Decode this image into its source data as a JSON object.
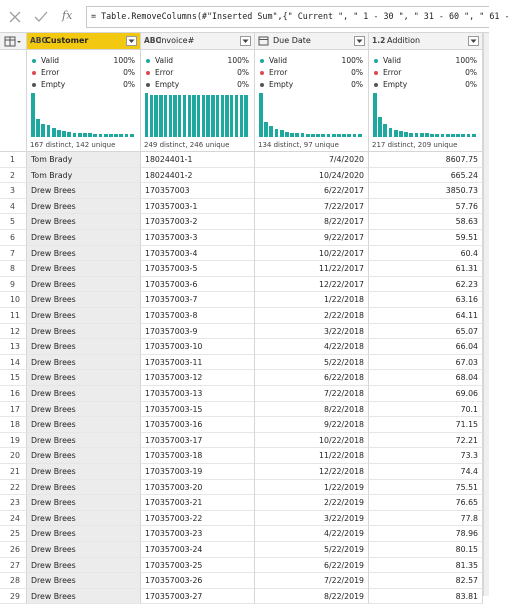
{
  "formula_bar": {
    "fx": "fx",
    "formula": "= Table.RemoveColumns(#\"Inserted Sum\",{\" Current \", \" 1 - 30 \", \" 31 - 60 \", \" 61 -"
  },
  "table": {
    "quality_labels": [
      "Valid",
      "Error",
      "Empty"
    ],
    "columns": [
      {
        "name": "Customer",
        "type_icon": "ABC",
        "quality": [
          "100%",
          "0%",
          "0%"
        ],
        "distribution": "167 distinct, 142 unique",
        "histogram": [
          100,
          40,
          30,
          27,
          20,
          17,
          14,
          12,
          10,
          9,
          8,
          8,
          7,
          7,
          6,
          6,
          6,
          6,
          6,
          6
        ]
      },
      {
        "name": "Invoice#",
        "type_icon": "ABC",
        "quality": [
          "100%",
          "0%",
          "0%"
        ],
        "distribution": "249 distinct, 246 unique",
        "histogram": [
          100,
          95,
          95,
          95,
          95,
          95,
          95,
          95,
          95,
          95,
          95,
          95,
          95,
          95,
          95,
          95,
          95,
          95,
          95,
          95,
          95,
          95
        ]
      },
      {
        "name": "Due Date",
        "quality": [
          "100%",
          "0%",
          "0%"
        ],
        "distribution": "134 distinct, 97 unique",
        "histogram": [
          100,
          35,
          25,
          18,
          15,
          12,
          10,
          9,
          8,
          7,
          7,
          6,
          6,
          6,
          6,
          6,
          6,
          6,
          6,
          6
        ]
      },
      {
        "name": "Addition",
        "type_icon": "1.2",
        "quality": [
          "100%",
          "0%",
          "0%"
        ],
        "distribution": "217 distinct, 209 unique",
        "histogram": [
          100,
          45,
          30,
          20,
          17,
          14,
          12,
          10,
          9,
          8,
          8,
          7,
          7,
          7,
          6,
          6,
          6,
          6,
          6,
          6
        ]
      }
    ],
    "rows": [
      [
        1,
        "Tom Brady",
        "18024401-1",
        "7/4/2020",
        "8607.75"
      ],
      [
        2,
        "Tom Brady",
        "18024401-2",
        "10/24/2020",
        "665.24"
      ],
      [
        3,
        "Drew Brees",
        "170357003",
        "6/22/2017",
        "3850.73"
      ],
      [
        4,
        "Drew Brees",
        "170357003-1",
        "7/22/2017",
        "57.76"
      ],
      [
        5,
        "Drew Brees",
        "170357003-2",
        "8/22/2017",
        "58.63"
      ],
      [
        6,
        "Drew Brees",
        "170357003-3",
        "9/22/2017",
        "59.51"
      ],
      [
        7,
        "Drew Brees",
        "170357003-4",
        "10/22/2017",
        "60.4"
      ],
      [
        8,
        "Drew Brees",
        "170357003-5",
        "11/22/2017",
        "61.31"
      ],
      [
        9,
        "Drew Brees",
        "170357003-6",
        "12/22/2017",
        "62.23"
      ],
      [
        10,
        "Drew Brees",
        "170357003-7",
        "1/22/2018",
        "63.16"
      ],
      [
        11,
        "Drew Brees",
        "170357003-8",
        "2/22/2018",
        "64.11"
      ],
      [
        12,
        "Drew Brees",
        "170357003-9",
        "3/22/2018",
        "65.07"
      ],
      [
        13,
        "Drew Brees",
        "170357003-10",
        "4/22/2018",
        "66.04"
      ],
      [
        14,
        "Drew Brees",
        "170357003-11",
        "5/22/2018",
        "67.03"
      ],
      [
        15,
        "Drew Brees",
        "170357003-12",
        "6/22/2018",
        "68.04"
      ],
      [
        16,
        "Drew Brees",
        "170357003-13",
        "7/22/2018",
        "69.06"
      ],
      [
        17,
        "Drew Brees",
        "170357003-15",
        "8/22/2018",
        "70.1"
      ],
      [
        18,
        "Drew Brees",
        "170357003-16",
        "9/22/2018",
        "71.15"
      ],
      [
        19,
        "Drew Brees",
        "170357003-17",
        "10/22/2018",
        "72.21"
      ],
      [
        20,
        "Drew Brees",
        "170357003-18",
        "11/22/2018",
        "73.3"
      ],
      [
        21,
        "Drew Brees",
        "170357003-19",
        "12/22/2018",
        "74.4"
      ],
      [
        22,
        "Drew Brees",
        "170357003-20",
        "1/22/2019",
        "75.51"
      ],
      [
        23,
        "Drew Brees",
        "170357003-21",
        "2/22/2019",
        "76.65"
      ],
      [
        24,
        "Drew Brees",
        "170357003-22",
        "3/22/2019",
        "77.8"
      ],
      [
        25,
        "Drew Brees",
        "170357003-23",
        "4/22/2019",
        "78.96"
      ],
      [
        26,
        "Drew Brees",
        "170357003-24",
        "5/22/2019",
        "80.15"
      ],
      [
        27,
        "Drew Brees",
        "170357003-25",
        "6/22/2019",
        "81.35"
      ],
      [
        28,
        "Drew Brees",
        "170357003-26",
        "7/22/2019",
        "82.57"
      ],
      [
        29,
        "Drew Brees",
        "170357003-27",
        "8/22/2019",
        "83.81"
      ]
    ]
  }
}
